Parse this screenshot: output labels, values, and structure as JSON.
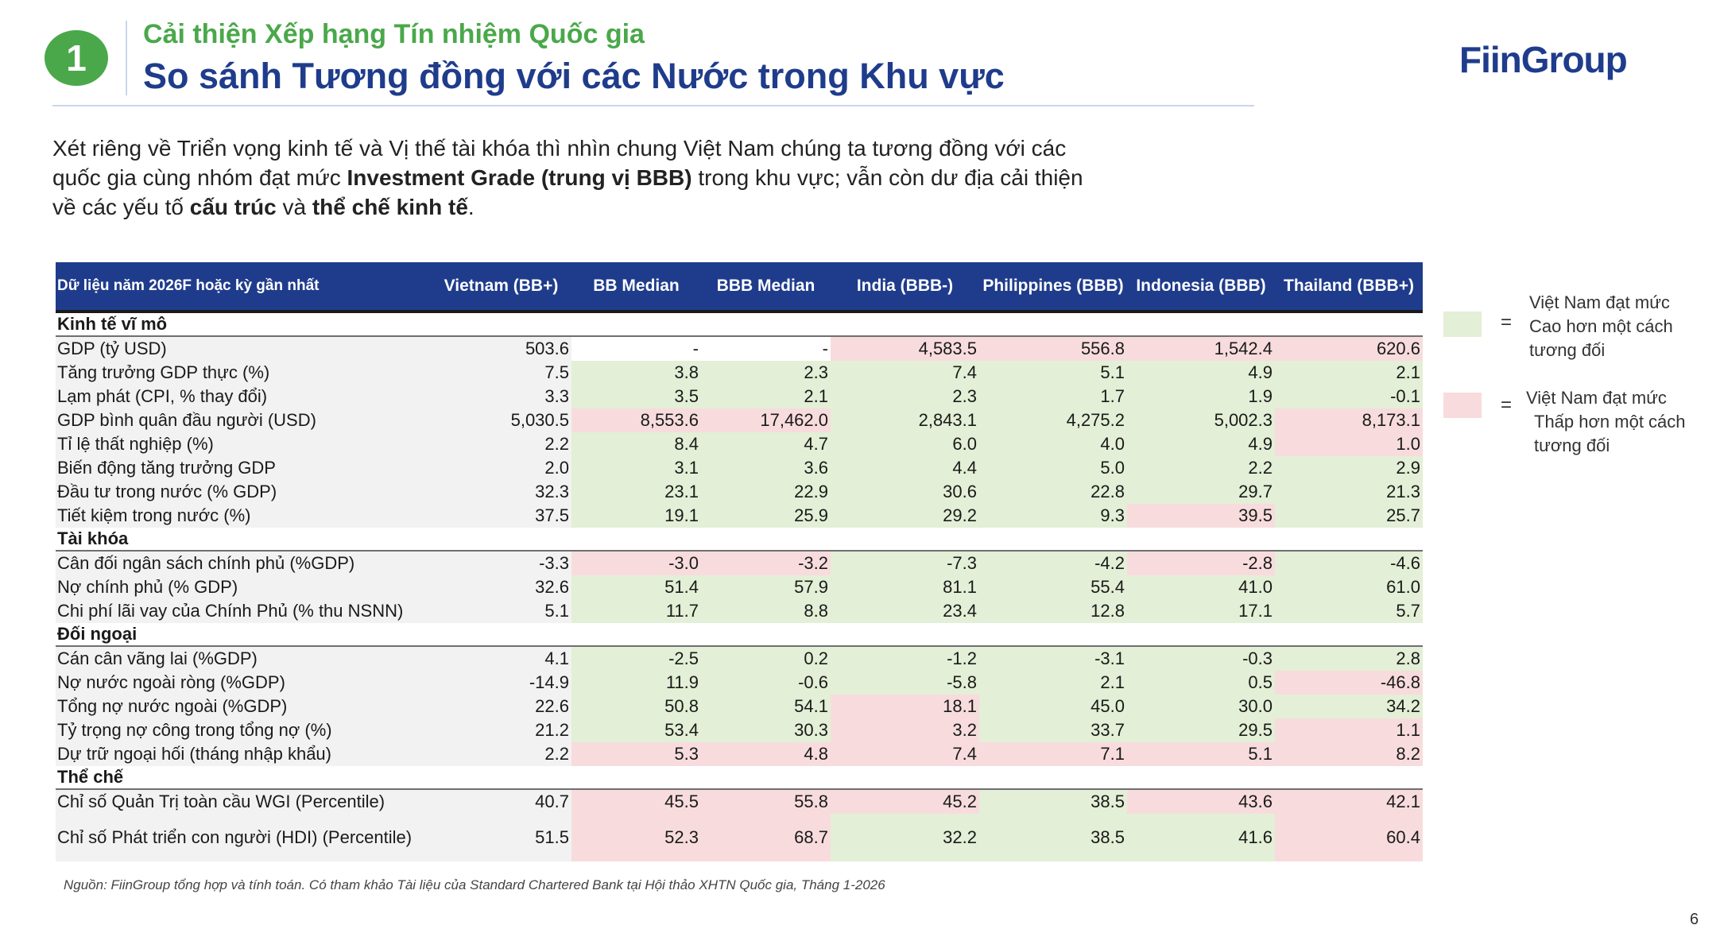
{
  "header": {
    "badge": "1",
    "subtitle": "Cải thiện Xếp hạng Tín nhiệm Quốc gia",
    "title": "So sánh Tương đồng với các Nước trong Khu vực",
    "logo": "FiinGroup"
  },
  "intro": {
    "p1": "Xét riêng về Triển vọng kinh tế và Vị thế tài khóa thì nhìn chung Việt Nam chúng ta tương đồng với các quốc gia cùng nhóm đạt mức ",
    "b1": "Investment Grade (trung vị BBB)",
    "p2": " trong khu vực; vẫn còn dư địa cải thiện về các yếu tố ",
    "b2": "cấu trúc",
    "p3": " và ",
    "b3": "thể chế kinh tế",
    "p4": "."
  },
  "table": {
    "headers": [
      "Dữ liệu năm 2026F hoặc kỳ gần nhất",
      "Vietnam (BB+)",
      "BB Median",
      "BBB Median",
      "India (BBB-)",
      "Philippines (BBB)",
      "Indonesia (BBB)",
      "Thailand (BBB+)"
    ],
    "sections": [
      {
        "title": "Kinh tế vĩ mô",
        "rows": [
          {
            "label": "GDP (tỷ USD)",
            "values": [
              "503.6",
              "-",
              "-",
              "4,583.5",
              "556.8",
              "1,542.4",
              "620.6"
            ],
            "colors": [
              "",
              "",
              "",
              "r",
              "r",
              "r",
              "r"
            ]
          },
          {
            "label": "Tăng trưởng GDP thực (%)",
            "values": [
              "7.5",
              "3.8",
              "2.3",
              "7.4",
              "5.1",
              "4.9",
              "2.1"
            ],
            "colors": [
              "",
              "g",
              "g",
              "g",
              "g",
              "g",
              "g"
            ]
          },
          {
            "label": "Lạm phát (CPI, % thay đổi)",
            "values": [
              "3.3",
              "3.5",
              "2.1",
              "2.3",
              "1.7",
              "1.9",
              "-0.1"
            ],
            "colors": [
              "",
              "g",
              "g",
              "g",
              "g",
              "g",
              "g"
            ]
          },
          {
            "label": "GDP bình quân đầu người (USD)",
            "values": [
              "5,030.5",
              "8,553.6",
              "17,462.0",
              "2,843.1",
              "4,275.2",
              "5,002.3",
              "8,173.1"
            ],
            "colors": [
              "",
              "r",
              "r",
              "g",
              "g",
              "g",
              "r"
            ]
          },
          {
            "label": "Tỉ lệ thất nghiệp (%)",
            "values": [
              "2.2",
              "8.4",
              "4.7",
              "6.0",
              "4.0",
              "4.9",
              "1.0"
            ],
            "colors": [
              "",
              "g",
              "g",
              "g",
              "g",
              "g",
              "r"
            ]
          },
          {
            "label": "Biến động tăng trưởng GDP",
            "values": [
              "2.0",
              "3.1",
              "3.6",
              "4.4",
              "5.0",
              "2.2",
              "2.9"
            ],
            "colors": [
              "",
              "g",
              "g",
              "g",
              "g",
              "g",
              "g"
            ]
          },
          {
            "label": "Đầu tư trong nước (% GDP)",
            "values": [
              "32.3",
              "23.1",
              "22.9",
              "30.6",
              "22.8",
              "29.7",
              "21.3"
            ],
            "colors": [
              "",
              "g",
              "g",
              "g",
              "g",
              "g",
              "g"
            ]
          },
          {
            "label": "Tiết kiệm trong nước (%)",
            "values": [
              "37.5",
              "19.1",
              "25.9",
              "29.2",
              "9.3",
              "39.5",
              "25.7"
            ],
            "colors": [
              "",
              "g",
              "g",
              "g",
              "g",
              "r",
              "g"
            ]
          }
        ]
      },
      {
        "title": "Tài khóa",
        "rows": [
          {
            "label": "Cân đối ngân sách chính phủ (%GDP)",
            "values": [
              "-3.3",
              "-3.0",
              "-3.2",
              "-7.3",
              "-4.2",
              "-2.8",
              "-4.6"
            ],
            "colors": [
              "",
              "r",
              "r",
              "g",
              "g",
              "r",
              "g"
            ]
          },
          {
            "label": "Nợ chính phủ (% GDP)",
            "values": [
              "32.6",
              "51.4",
              "57.9",
              "81.1",
              "55.4",
              "41.0",
              "61.0"
            ],
            "colors": [
              "",
              "g",
              "g",
              "g",
              "g",
              "g",
              "g"
            ]
          },
          {
            "label": "Chi phí lãi vay của Chính Phủ (% thu NSNN)",
            "values": [
              "5.1",
              "11.7",
              "8.8",
              "23.4",
              "12.8",
              "17.1",
              "5.7"
            ],
            "colors": [
              "",
              "g",
              "g",
              "g",
              "g",
              "g",
              "g"
            ]
          }
        ]
      },
      {
        "title": "Đối ngoại",
        "rows": [
          {
            "label": "Cán cân vãng lai (%GDP)",
            "values": [
              "4.1",
              "-2.5",
              "0.2",
              "-1.2",
              "-3.1",
              "-0.3",
              "2.8"
            ],
            "colors": [
              "",
              "g",
              "g",
              "g",
              "g",
              "g",
              "g"
            ]
          },
          {
            "label": "Nợ nước ngoài ròng (%GDP)",
            "values": [
              "-14.9",
              "11.9",
              "-0.6",
              "-5.8",
              "2.1",
              "0.5",
              "-46.8"
            ],
            "colors": [
              "",
              "g",
              "g",
              "g",
              "g",
              "g",
              "r"
            ]
          },
          {
            "label": "Tổng nợ nước ngoài (%GDP)",
            "values": [
              "22.6",
              "50.8",
              "54.1",
              "18.1",
              "45.0",
              "30.0",
              "34.2"
            ],
            "colors": [
              "",
              "g",
              "g",
              "r",
              "g",
              "g",
              "g"
            ]
          },
          {
            "label": "Tỷ trọng nợ công trong tổng nợ (%)",
            "values": [
              "21.2",
              "53.4",
              "30.3",
              "3.2",
              "33.7",
              "29.5",
              "1.1"
            ],
            "colors": [
              "",
              "g",
              "g",
              "r",
              "g",
              "g",
              "r"
            ]
          },
          {
            "label": "Dự trữ ngoại hối (tháng nhập khẩu)",
            "values": [
              "2.2",
              "5.3",
              "4.8",
              "7.4",
              "7.1",
              "5.1",
              "8.2"
            ],
            "colors": [
              "",
              "r",
              "r",
              "r",
              "r",
              "r",
              "r"
            ]
          }
        ]
      },
      {
        "title": "Thể chế",
        "rows": [
          {
            "label": "Chỉ số Quản Trị toàn cầu WGI  (Percentile)",
            "values": [
              "40.7",
              "45.5",
              "55.8",
              "45.2",
              "38.5",
              "43.6",
              "42.1"
            ],
            "colors": [
              "",
              "r",
              "r",
              "r",
              "g",
              "r",
              "r"
            ]
          },
          {
            "label": "Chỉ số Phát triển con người (HDI) (Percentile)",
            "values": [
              "51.5",
              "52.3",
              "68.7",
              "32.2",
              "38.5",
              "41.6",
              "60.4"
            ],
            "colors": [
              "",
              "r",
              "r",
              "g",
              "g",
              "g",
              "r"
            ],
            "tall": true
          }
        ]
      }
    ]
  },
  "legend": {
    "eq": "=",
    "green_text": [
      "Việt Nam đạt mức",
      "Cao hơn một cách",
      "tương đối"
    ],
    "red_text": [
      "Việt Nam đạt mức",
      "Thấp hơn một cách",
      "tương đối"
    ],
    "green_color": "#e3efd6",
    "red_color": "#f8dcdd"
  },
  "source": "Nguồn: FiinGroup tổng hợp và tính toán. Có tham khảo Tài liệu của Standard Chartered Bank tại Hội thảo XHTN Quốc gia, Tháng 1-2026",
  "page_number": "6"
}
